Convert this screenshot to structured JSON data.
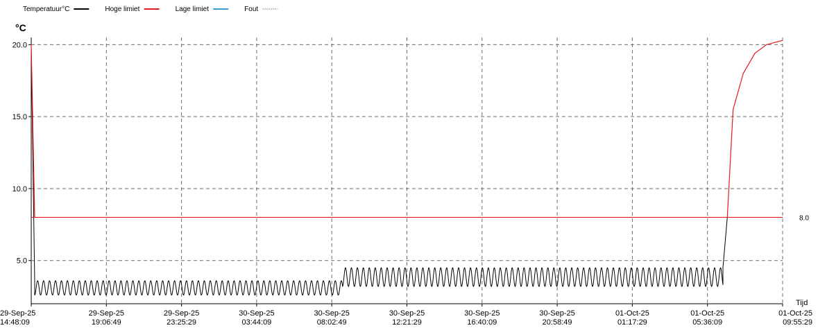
{
  "legend": {
    "items": [
      {
        "label": "Temperatuur°C",
        "color": "#000000",
        "style": "solid"
      },
      {
        "label": "Hoge limiet",
        "color": "#e31a1c",
        "style": "solid"
      },
      {
        "label": "Lage limiet",
        "color": "#3a9ad9",
        "style": "solid"
      },
      {
        "label": "Fout",
        "color": "#9a9a9a",
        "style": "dotted"
      }
    ]
  },
  "axes": {
    "y_unit": "°C",
    "x_label": "Tijd",
    "ylim": [
      2.0,
      20.5
    ],
    "y_ticks": [
      {
        "value": 5,
        "label": "5.0"
      },
      {
        "value": 10,
        "label": "10.0"
      },
      {
        "value": 15,
        "label": "15.0"
      },
      {
        "value": 20,
        "label": "20.0"
      }
    ],
    "x_ticks": [
      {
        "date": "29-Sep-25",
        "time": "14:48:09"
      },
      {
        "date": "29-Sep-25",
        "time": "19:06:49"
      },
      {
        "date": "29-Sep-25",
        "time": "23:25:29"
      },
      {
        "date": "30-Sep-25",
        "time": "03:44:09"
      },
      {
        "date": "30-Sep-25",
        "time": "08:02:49"
      },
      {
        "date": "30-Sep-25",
        "time": "12:21:29"
      },
      {
        "date": "30-Sep-25",
        "time": "16:40:09"
      },
      {
        "date": "30-Sep-25",
        "time": "20:58:49"
      },
      {
        "date": "01-Oct-25",
        "time": "01:17:29"
      },
      {
        "date": "01-Oct-25",
        "time": "05:36:09"
      },
      {
        "date": "01-Oct-25",
        "time": "09:55:29"
      }
    ],
    "grid": true
  },
  "chart_data": {
    "type": "line",
    "x_range": [
      "29-Sep-25 14:48:09",
      "01-Oct-25 09:55:29"
    ],
    "ylim": [
      2.0,
      20.5
    ],
    "high_limit": {
      "value": 8.0,
      "label": "8.0",
      "color": "#e31a1c"
    },
    "series": [
      {
        "name": "Temperatuur°C",
        "color": "#000000",
        "segments": [
          {
            "start": "29-Sep-25 14:48:09",
            "end": "29-Sep-25 15:00:00",
            "from": 20.0,
            "to": 3.6
          },
          {
            "start": "29-Sep-25 15:00:00",
            "end": "30-Sep-25 08:40:00",
            "low": 2.6,
            "high": 3.6,
            "cycle_minutes": 20.5
          },
          {
            "start": "30-Sep-25 08:40:00",
            "end": "01-Oct-25 06:30:00",
            "low": 3.2,
            "high": 4.5,
            "cycle_minutes": 20.5
          },
          {
            "start": "01-Oct-25 06:30:00",
            "end": "01-Oct-25 06:45:00",
            "from": 4.5,
            "to": 8.0
          }
        ]
      },
      {
        "name": "Hoge limiet",
        "color": "#e31a1c",
        "above_limit_points": [
          {
            "x": "29-Sep-25 14:48:09",
            "y": 20.0
          },
          {
            "x": "01-Oct-25 06:45:00",
            "y": 8.0
          },
          {
            "x": "01-Oct-25 07:05:00",
            "y": 15.5
          },
          {
            "x": "01-Oct-25 07:40:00",
            "y": 18.0
          },
          {
            "x": "01-Oct-25 08:20:00",
            "y": 19.4
          },
          {
            "x": "01-Oct-25 09:00:00",
            "y": 20.0
          },
          {
            "x": "01-Oct-25 09:55:29",
            "y": 20.3
          }
        ]
      }
    ]
  }
}
